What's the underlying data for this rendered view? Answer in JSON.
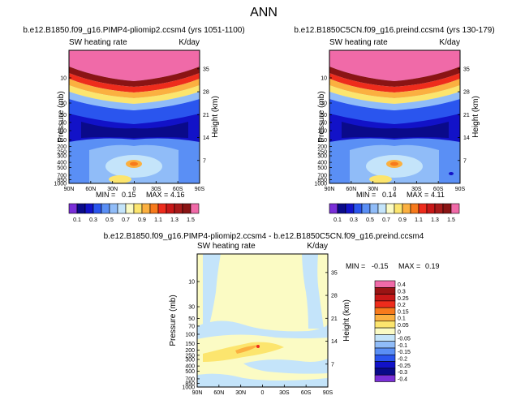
{
  "figure_title": "ANN",
  "chart_data": [
    {
      "type": "heatmap",
      "title": "b.e12.B1850.f09_g16.PIMP4-pliomip2.ccsm4 (yrs 1051-1100)",
      "left_label": "SW heating rate",
      "right_label": "K/day",
      "ylabel": "Pressure (mb)",
      "ylabel_right": "Height (km)",
      "xticks": [
        "90N",
        "60N",
        "30N",
        "0",
        "30S",
        "60S",
        "90S"
      ],
      "yticks": [
        "10",
        "30",
        "50",
        "70",
        "100",
        "150",
        "200",
        "250",
        "300",
        "400",
        "500",
        "700",
        "850",
        "1000"
      ],
      "height_ticks": [
        "7",
        "14",
        "21",
        "28",
        "35"
      ],
      "min_label": "MIN =",
      "min_value": "0.15",
      "max_label": "MAX =",
      "max_value": "4.16",
      "ylim_mb": [
        1000,
        3
      ],
      "field_sketch": "high values (>1.5) above 10 mb, sharp decrease 10-100 mb, lowest (0.1-0.3) near 100-150 mb at equator, 0.5-0.9 patches in lower troposphere near equator"
    },
    {
      "type": "heatmap",
      "title": "b.e12.B1850C5CN.f09_g16.preind.ccsm4 (yrs 130-179)",
      "left_label": "SW heating rate",
      "right_label": "K/day",
      "ylabel": "Pressure (mb)",
      "ylabel_right": "Height (km)",
      "xticks": [
        "90N",
        "60N",
        "30N",
        "0",
        "30S",
        "60S",
        "90S"
      ],
      "yticks": [
        "10",
        "30",
        "50",
        "70",
        "100",
        "150",
        "200",
        "250",
        "300",
        "400",
        "500",
        "700",
        "850",
        "1000"
      ],
      "height_ticks": [
        "7",
        "14",
        "21",
        "28",
        "35"
      ],
      "min_label": "MIN =",
      "min_value": "0.14",
      "max_label": "MAX =",
      "max_value": "4.11",
      "ylim_mb": [
        1000,
        3
      ]
    },
    {
      "type": "heatmap",
      "title": "b.e12.B1850.f09_g16.PIMP4-pliomip2.ccsm4 - b.e12.B1850C5CN.f09_g16.preind.ccsm4",
      "left_label": "SW heating rate",
      "right_label": "K/day",
      "ylabel": "Pressure (mb)",
      "ylabel_right": "Height (km)",
      "xticks": [
        "90N",
        "60N",
        "30N",
        "0",
        "30S",
        "60S",
        "90S"
      ],
      "yticks": [
        "10",
        "30",
        "50",
        "70",
        "100",
        "150",
        "200",
        "250",
        "300",
        "400",
        "500",
        "700",
        "850",
        "1000"
      ],
      "height_ticks": [
        "7",
        "14",
        "21",
        "28",
        "35"
      ],
      "min_label": "MIN =",
      "min_value": "-0.15",
      "max_label": "MAX =",
      "max_value": "0.19",
      "ylim_mb": [
        1000,
        3
      ]
    }
  ],
  "top_colorbar": {
    "labels": [
      "0.1",
      "0.3",
      "0.5",
      "0.7",
      "0.9",
      "1.1",
      "1.3",
      "1.5"
    ],
    "levels": [
      0.1,
      0.2,
      0.3,
      0.4,
      0.5,
      0.6,
      0.7,
      0.8,
      0.9,
      1.0,
      1.1,
      1.2,
      1.3,
      1.4,
      1.5
    ],
    "colors": [
      "#7a2fd8",
      "#0a0a8a",
      "#1212c8",
      "#2a55ee",
      "#5a8ff5",
      "#90bcf8",
      "#c4e4fa",
      "#fbfbc4",
      "#fce56e",
      "#fbb040",
      "#f77a1c",
      "#ee2c1c",
      "#c81818",
      "#a81a1a",
      "#8a1414",
      "#f06aa8"
    ]
  },
  "diff_colorbar": {
    "labels": [
      "0.4",
      "0.3",
      "0.25",
      "0.2",
      "0.15",
      "0.1",
      "0.05",
      "0",
      "-0.05",
      "-0.1",
      "-0.15",
      "-0.2",
      "-0.25",
      "-0.3",
      "-0.4"
    ],
    "colors": [
      "#f06aa8",
      "#9a1414",
      "#c81818",
      "#ee2c1c",
      "#f77a1c",
      "#fbb040",
      "#fce56e",
      "#fbfbc4",
      "#c4e4fa",
      "#90bcf8",
      "#5a8ff5",
      "#2a55ee",
      "#1212c8",
      "#0a0a8a",
      "#7a2fd8"
    ]
  }
}
